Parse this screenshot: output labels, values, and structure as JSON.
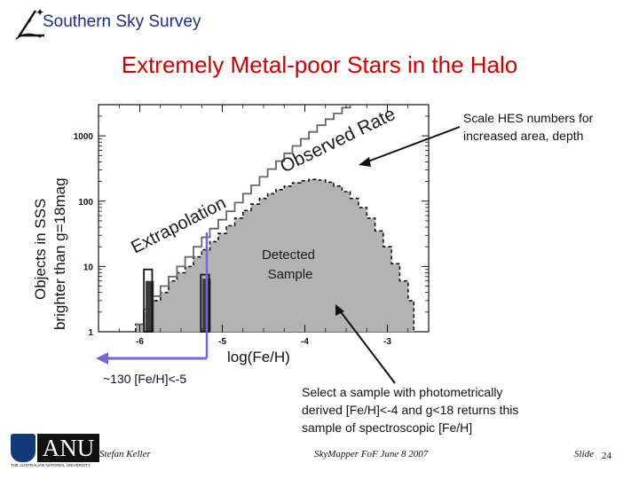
{
  "header": {
    "survey": "Southern Sky Survey"
  },
  "slide": {
    "title": "Extremely Metal-poor Stars in the Halo",
    "number_label": "Slide",
    "number": "24"
  },
  "annotations": {
    "scale_line1": "Scale HES numbers for",
    "scale_line2": "increased area, depth",
    "count": "~130 [Fe/H]<-5",
    "select_line1": "Select a sample with photometrically",
    "select_line2": "derived [Fe/H]<-4 and g<18 returns this",
    "select_line3": "sample of spectroscopic [Fe/H]"
  },
  "footer": {
    "author": "Stefan Keller",
    "event": "SkyMapper FoF June 8 2007",
    "logo_text": "ANU",
    "logo_subtext": "THE AUSTRALIAN NATIONAL UNIVERSITY"
  },
  "chart_data": {
    "type": "area",
    "title": "",
    "xlabel": "log(Fe/H)",
    "ylabel_line1": "Objects in SSS",
    "ylabel_line2": "brighter than g=18mag",
    "xlim": [
      -6.5,
      -2.5
    ],
    "ylim": [
      1,
      3000
    ],
    "yscale": "log",
    "x_ticks": [
      {
        "v": -6,
        "label": "-6"
      },
      {
        "v": -5,
        "label": "-5"
      },
      {
        "v": -4,
        "label": "-4"
      },
      {
        "v": -3,
        "label": "-3"
      }
    ],
    "y_ticks": [
      {
        "v": 1,
        "label": "1"
      },
      {
        "v": 10,
        "label": "10"
      },
      {
        "v": 100,
        "label": "100"
      },
      {
        "v": 1000,
        "label": "1000"
      }
    ],
    "labels": {
      "observed": "Observed Rate",
      "extrapolation": "Extrapolation",
      "detected_line1": "Detected",
      "detected_line2": "Sample"
    },
    "detected_sample": [
      [
        -6.05,
        1
      ],
      [
        -6.05,
        1.3
      ],
      [
        -5.95,
        1.3
      ],
      [
        -5.95,
        2
      ],
      [
        -5.85,
        2
      ],
      [
        -5.85,
        3
      ],
      [
        -5.75,
        3
      ],
      [
        -5.75,
        4
      ],
      [
        -5.65,
        4
      ],
      [
        -5.65,
        6
      ],
      [
        -5.55,
        6
      ],
      [
        -5.55,
        8
      ],
      [
        -5.45,
        8
      ],
      [
        -5.45,
        10
      ],
      [
        -5.35,
        10
      ],
      [
        -5.35,
        14
      ],
      [
        -5.25,
        14
      ],
      [
        -5.25,
        18
      ],
      [
        -5.15,
        18
      ],
      [
        -5.15,
        24
      ],
      [
        -5.05,
        24
      ],
      [
        -5.05,
        32
      ],
      [
        -4.95,
        32
      ],
      [
        -4.95,
        42
      ],
      [
        -4.85,
        42
      ],
      [
        -4.85,
        55
      ],
      [
        -4.75,
        55
      ],
      [
        -4.75,
        72
      ],
      [
        -4.65,
        72
      ],
      [
        -4.65,
        90
      ],
      [
        -4.55,
        90
      ],
      [
        -4.55,
        110
      ],
      [
        -4.45,
        110
      ],
      [
        -4.45,
        130
      ],
      [
        -4.35,
        130
      ],
      [
        -4.35,
        150
      ],
      [
        -4.25,
        150
      ],
      [
        -4.25,
        170
      ],
      [
        -4.15,
        170
      ],
      [
        -4.15,
        190
      ],
      [
        -4.05,
        190
      ],
      [
        -4.05,
        205
      ],
      [
        -3.95,
        205
      ],
      [
        -3.95,
        215
      ],
      [
        -3.85,
        215
      ],
      [
        -3.85,
        210
      ],
      [
        -3.75,
        210
      ],
      [
        -3.75,
        195
      ],
      [
        -3.65,
        195
      ],
      [
        -3.65,
        170
      ],
      [
        -3.55,
        170
      ],
      [
        -3.55,
        140
      ],
      [
        -3.45,
        140
      ],
      [
        -3.45,
        110
      ],
      [
        -3.35,
        110
      ],
      [
        -3.35,
        80
      ],
      [
        -3.25,
        80
      ],
      [
        -3.25,
        55
      ],
      [
        -3.15,
        55
      ],
      [
        -3.15,
        35
      ],
      [
        -3.05,
        35
      ],
      [
        -3.05,
        20
      ],
      [
        -2.95,
        20
      ],
      [
        -2.95,
        11
      ],
      [
        -2.85,
        11
      ],
      [
        -2.85,
        6
      ],
      [
        -2.75,
        6
      ],
      [
        -2.75,
        3
      ],
      [
        -2.68,
        3
      ],
      [
        -2.68,
        1
      ]
    ],
    "observed_rate": [
      [
        -6.05,
        1.3
      ],
      [
        -5.95,
        1.3
      ],
      [
        -5.95,
        2.2
      ],
      [
        -5.85,
        2.2
      ],
      [
        -5.85,
        3.5
      ],
      [
        -5.75,
        3.5
      ],
      [
        -5.75,
        5
      ],
      [
        -5.65,
        5
      ],
      [
        -5.65,
        7
      ],
      [
        -5.55,
        7
      ],
      [
        -5.55,
        10
      ],
      [
        -5.45,
        10
      ],
      [
        -5.45,
        14
      ],
      [
        -5.35,
        14
      ],
      [
        -5.35,
        20
      ],
      [
        -5.25,
        20
      ],
      [
        -5.25,
        28
      ],
      [
        -5.15,
        28
      ],
      [
        -5.15,
        38
      ],
      [
        -5.05,
        38
      ],
      [
        -5.05,
        52
      ],
      [
        -4.95,
        52
      ],
      [
        -4.95,
        70
      ],
      [
        -4.85,
        70
      ],
      [
        -4.85,
        95
      ],
      [
        -4.75,
        95
      ],
      [
        -4.75,
        130
      ],
      [
        -4.65,
        130
      ],
      [
        -4.65,
        175
      ],
      [
        -4.55,
        175
      ],
      [
        -4.55,
        235
      ],
      [
        -4.45,
        235
      ],
      [
        -4.45,
        310
      ],
      [
        -4.35,
        310
      ],
      [
        -4.35,
        410
      ],
      [
        -4.25,
        410
      ],
      [
        -4.25,
        540
      ],
      [
        -4.15,
        540
      ],
      [
        -4.15,
        700
      ],
      [
        -4.05,
        700
      ],
      [
        -4.05,
        900
      ],
      [
        -3.95,
        900
      ],
      [
        -3.95,
        1150
      ],
      [
        -3.85,
        1150
      ],
      [
        -3.85,
        1450
      ],
      [
        -3.75,
        1450
      ],
      [
        -3.75,
        1800
      ],
      [
        -3.65,
        1800
      ],
      [
        -3.65,
        2200
      ],
      [
        -3.55,
        2200
      ],
      [
        -3.55,
        2700
      ],
      [
        -3.45,
        2700
      ],
      [
        -3.45,
        3000
      ],
      [
        -3.0,
        3000
      ]
    ],
    "bars": [
      {
        "x0": -5.93,
        "x1": -5.83,
        "y": 6
      },
      {
        "x0": -5.24,
        "x1": -5.14,
        "y": 6.5
      }
    ],
    "bar_outlines": [
      {
        "x0": -5.95,
        "x1": -5.85,
        "y": 9
      },
      {
        "x0": -5.26,
        "x1": -5.16,
        "y": 7.5
      }
    ]
  },
  "colors": {
    "title_red": "#d10000",
    "header_blue": "#1b2e86",
    "fill_grey": "#b3b3b3",
    "bar_dark": "#3a3a3a",
    "arrow_purple": "#7b63e0"
  }
}
